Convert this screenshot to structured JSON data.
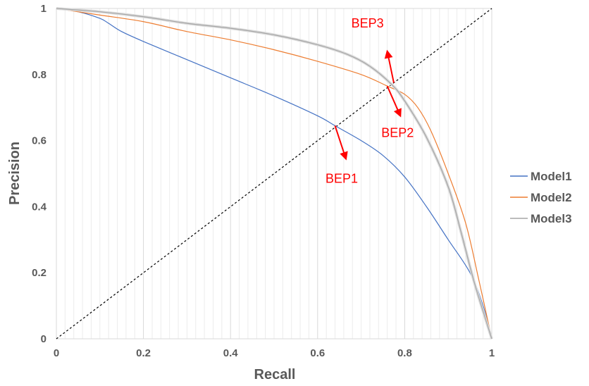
{
  "chart_data": {
    "type": "line",
    "title": "",
    "xlabel": "Recall",
    "ylabel": "Precision",
    "xlim": [
      0,
      1
    ],
    "ylim": [
      0,
      1
    ],
    "x_ticks": [
      "0",
      "0.2",
      "0.4",
      "0.6",
      "0.8",
      "1"
    ],
    "y_ticks": [
      "0",
      "0.2",
      "0.4",
      "0.6",
      "0.8",
      "1"
    ],
    "grid": "vertical minor",
    "legend_position": "right",
    "series": [
      {
        "name": "Model1",
        "color": "#4472c4",
        "x": [
          0,
          0.05,
          0.1,
          0.12,
          0.15,
          0.2,
          0.3,
          0.4,
          0.5,
          0.6,
          0.64,
          0.7,
          0.75,
          0.8,
          0.85,
          0.9,
          0.95,
          0.98,
          1
        ],
        "y": [
          1,
          0.99,
          0.97,
          0.955,
          0.93,
          0.9,
          0.845,
          0.79,
          0.735,
          0.675,
          0.645,
          0.6,
          0.555,
          0.49,
          0.4,
          0.3,
          0.2,
          0.1,
          0
        ]
      },
      {
        "name": "Model2",
        "color": "#ed7d31",
        "x": [
          0,
          0.1,
          0.2,
          0.3,
          0.4,
          0.5,
          0.6,
          0.7,
          0.76,
          0.8,
          0.83,
          0.86,
          0.9,
          0.94,
          0.97,
          1
        ],
        "y": [
          1,
          0.98,
          0.96,
          0.93,
          0.905,
          0.875,
          0.84,
          0.8,
          0.765,
          0.74,
          0.7,
          0.63,
          0.5,
          0.35,
          0.18,
          0
        ]
      },
      {
        "name": "Model3",
        "color": "#a5a5a5",
        "x": [
          0,
          0.1,
          0.2,
          0.3,
          0.4,
          0.5,
          0.6,
          0.67,
          0.72,
          0.77,
          0.8,
          0.85,
          0.9,
          0.93,
          0.96,
          1
        ],
        "y": [
          1,
          0.99,
          0.975,
          0.955,
          0.94,
          0.92,
          0.89,
          0.86,
          0.825,
          0.77,
          0.72,
          0.61,
          0.46,
          0.32,
          0.17,
          0
        ]
      }
    ],
    "reference_line": {
      "style": "dashed",
      "color": "#000000",
      "x": [
        0,
        1
      ],
      "y": [
        0,
        1
      ]
    },
    "annotations": [
      {
        "text": "BEP1",
        "color": "#ff0000",
        "point": [
          0.64,
          0.645
        ],
        "arrow_to": [
          0.665,
          0.545
        ]
      },
      {
        "text": "BEP2",
        "color": "#ff0000",
        "point": [
          0.76,
          0.765
        ],
        "arrow_to": [
          0.79,
          0.675
        ]
      },
      {
        "text": "BEP3",
        "color": "#ff0000",
        "point": [
          0.775,
          0.775
        ],
        "arrow_to": [
          0.76,
          0.87
        ]
      }
    ]
  }
}
